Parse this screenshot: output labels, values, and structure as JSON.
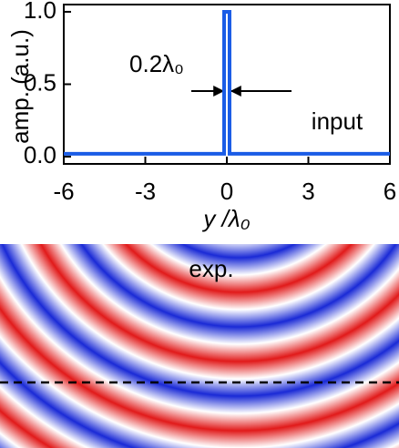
{
  "chart_data": {
    "type": "line",
    "ylabel": "amp. (a.u.)",
    "xlabel": "y /λ₀",
    "annotations": [
      "0.2λ₀",
      "input"
    ],
    "x": [
      -6,
      -0.1,
      -0.1,
      0.1,
      0.1,
      6
    ],
    "series": [
      {
        "color": "#1a5ce6",
        "values": [
          0.02,
          0.02,
          1,
          1,
          0.02,
          0.02
        ]
      }
    ],
    "xlim": [
      -6,
      6
    ],
    "xticks": [
      -6,
      -3,
      0,
      3,
      6
    ],
    "ylim": [
      -0.05,
      1.05
    ],
    "yticks": [
      {
        "value": 0,
        "label": "0.0"
      },
      0.5,
      {
        "value": 1,
        "label": "1.0"
      }
    ]
  },
  "field_map": {
    "label": "exp."
  }
}
